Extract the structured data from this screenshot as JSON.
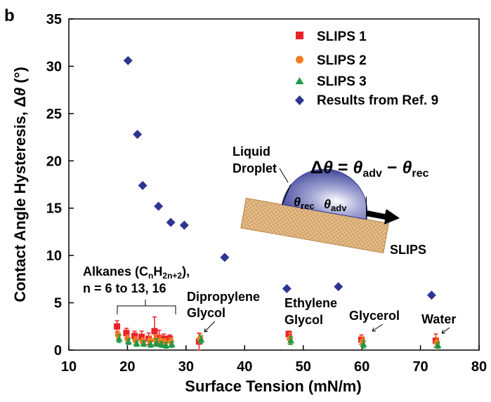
{
  "chart_data": {
    "type": "scatter",
    "panel_label": "b",
    "xlabel": "Surface Tension (mN/m)",
    "ylabel_prefix": "Contact Angle Hysteresis, Δ",
    "ylabel_theta": "θ",
    "ylabel_suffix": " (°)",
    "xlim": [
      10,
      80
    ],
    "ylim": [
      0,
      35
    ],
    "xticks": [
      10,
      20,
      30,
      40,
      50,
      60,
      70,
      80
    ],
    "yticks": [
      0,
      5,
      10,
      15,
      20,
      25,
      30,
      35
    ],
    "legend_position": "top-right",
    "colors": {
      "slips1": "#e8212a",
      "slips2": "#f47d20",
      "slips3": "#1e9a46",
      "ref9": "#2e3590"
    },
    "series": [
      {
        "name": "SLIPS 1",
        "marker": "square",
        "color_key": "slips1",
        "points": [
          {
            "x": 18.4,
            "y": 2.5,
            "err": 0.6
          },
          {
            "x": 20.0,
            "y": 1.8,
            "err": 0.5
          },
          {
            "x": 21.4,
            "y": 1.5,
            "err": 0.5
          },
          {
            "x": 22.6,
            "y": 1.4,
            "err": 0.6
          },
          {
            "x": 23.8,
            "y": 1.2,
            "err": 0.6
          },
          {
            "x": 24.8,
            "y": 2.0,
            "err": 1.5
          },
          {
            "x": 25.6,
            "y": 1.3,
            "err": 0.8
          },
          {
            "x": 26.4,
            "y": 1.2,
            "err": 0.5
          },
          {
            "x": 27.4,
            "y": 1.2,
            "err": 0.4
          },
          {
            "x": 32.4,
            "y": 0.9,
            "err": 0.9
          },
          {
            "x": 47.7,
            "y": 1.7,
            "err": 0.3
          },
          {
            "x": 60.1,
            "y": 1.1,
            "err": 0.5
          },
          {
            "x": 72.8,
            "y": 1.0,
            "err": 0.7
          }
        ]
      },
      {
        "name": "SLIPS 2",
        "marker": "circle",
        "color_key": "slips2",
        "points": [
          {
            "x": 18.4,
            "y": 1.6,
            "err": 0.4
          },
          {
            "x": 20.0,
            "y": 1.2,
            "err": 0.4
          },
          {
            "x": 21.4,
            "y": 1.0,
            "err": 0.4
          },
          {
            "x": 22.6,
            "y": 0.9,
            "err": 0.4
          },
          {
            "x": 23.8,
            "y": 1.0,
            "err": 0.5
          },
          {
            "x": 24.8,
            "y": 1.1,
            "err": 0.5
          },
          {
            "x": 25.6,
            "y": 1.0,
            "err": 0.5
          },
          {
            "x": 26.4,
            "y": 0.8,
            "err": 0.4
          },
          {
            "x": 27.4,
            "y": 0.9,
            "err": 0.4
          },
          {
            "x": 32.4,
            "y": 1.2,
            "err": 0.5
          },
          {
            "x": 47.7,
            "y": 1.2,
            "err": 0.6
          },
          {
            "x": 60.1,
            "y": 0.9,
            "err": 0.5
          },
          {
            "x": 72.8,
            "y": 0.8,
            "err": 0.5
          }
        ]
      },
      {
        "name": "SLIPS 3",
        "marker": "triangle",
        "color_key": "slips3",
        "points": [
          {
            "x": 18.4,
            "y": 1.2,
            "err": 0.4
          },
          {
            "x": 20.0,
            "y": 0.9,
            "err": 0.3
          },
          {
            "x": 21.4,
            "y": 0.7,
            "err": 0.3
          },
          {
            "x": 22.6,
            "y": 0.7,
            "err": 0.3
          },
          {
            "x": 23.8,
            "y": 0.6,
            "err": 0.3
          },
          {
            "x": 24.8,
            "y": 0.8,
            "err": 0.4
          },
          {
            "x": 25.6,
            "y": 0.6,
            "err": 0.3
          },
          {
            "x": 26.4,
            "y": 0.5,
            "err": 0.3
          },
          {
            "x": 27.4,
            "y": 0.6,
            "err": 0.3
          },
          {
            "x": 32.4,
            "y": 1.1,
            "err": 0.4
          },
          {
            "x": 47.7,
            "y": 1.0,
            "err": 0.4
          },
          {
            "x": 60.1,
            "y": 0.6,
            "err": 0.4
          },
          {
            "x": 72.8,
            "y": 0.5,
            "err": 0.3
          }
        ]
      },
      {
        "name": "Results from Ref. 9",
        "marker": "diamond",
        "color_key": "ref9",
        "points": [
          {
            "x": 20.1,
            "y": 30.6
          },
          {
            "x": 21.7,
            "y": 22.8
          },
          {
            "x": 22.6,
            "y": 17.4
          },
          {
            "x": 25.3,
            "y": 15.2
          },
          {
            "x": 27.4,
            "y": 13.5
          },
          {
            "x": 29.7,
            "y": 13.2
          },
          {
            "x": 36.6,
            "y": 9.8
          },
          {
            "x": 47.2,
            "y": 6.5
          },
          {
            "x": 56.0,
            "y": 6.7
          },
          {
            "x": 71.9,
            "y": 5.8
          }
        ]
      }
    ],
    "annotations": {
      "alkanes_line1_prefix": "Alkanes (C",
      "alkanes_sub1": "n",
      "alkanes_mid": "H",
      "alkanes_sub2": "2n+2",
      "alkanes_suffix": "),",
      "alkanes_line2": "n = 6 to 13, 16",
      "dipropylene": "Dipropylene",
      "dipropylene_2": "Glycol",
      "ethylene": "Ethylene",
      "ethylene_2": "Glycol",
      "glycerol": "Glycerol",
      "water": "Water"
    },
    "inset": {
      "liquid": "Liquid",
      "droplet": "Droplet",
      "eq_delta": "Δ",
      "eq_theta": "θ",
      "eq_equals": " = ",
      "eq_theta_adv": "θ",
      "eq_adv_sub": "adv",
      "eq_minus": " − ",
      "eq_theta_rec": "θ",
      "eq_rec_sub": "rec",
      "theta_rec": "θ",
      "rec_sub": "rec",
      "theta_adv": "θ",
      "adv_sub": "adv",
      "slips_label": "SLIPS"
    }
  }
}
